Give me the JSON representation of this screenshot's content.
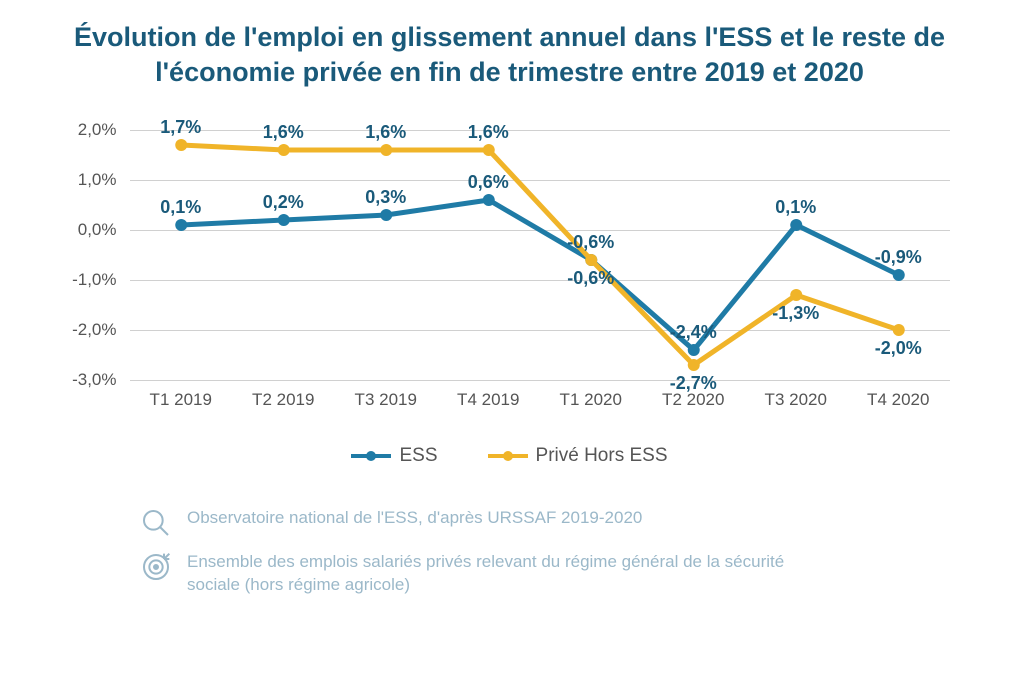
{
  "title": "Évolution de l'emploi en glissement annuel dans l'ESS et le reste de l'économie privée en fin de trimestre entre 2019 et 2020",
  "chart": {
    "type": "line",
    "title_color": "#1a5a7a",
    "title_fontsize": 27,
    "background_color": "#ffffff",
    "grid_color": "#d0d0d0",
    "axis_text_color": "#555555",
    "axis_fontsize": 17,
    "data_label_color": "#1a5a7a",
    "data_label_fontsize": 18,
    "categories": [
      "T1 2019",
      "T2 2019",
      "T3 2019",
      "T4 2019",
      "T1 2020",
      "T2 2020",
      "T3 2020",
      "T4 2020"
    ],
    "ylim": [
      -3.0,
      2.0
    ],
    "yticks": [
      -3.0,
      -2.0,
      -1.0,
      0.0,
      1.0,
      2.0
    ],
    "ytick_labels": [
      "-3,0%",
      "-2,0%",
      "-1,0%",
      "0,0%",
      "1,0%",
      "2,0%"
    ],
    "line_width": 5,
    "marker_radius": 6,
    "series": [
      {
        "name": "ESS",
        "color": "#1f7ba6",
        "values": [
          0.1,
          0.2,
          0.3,
          0.6,
          -0.6,
          -2.4,
          0.1,
          -0.9
        ],
        "labels": [
          "0,1%",
          "0,2%",
          "0,3%",
          "0,6%",
          "-0,6%",
          "-2,4%",
          "0,1%",
          "-0,9%"
        ],
        "label_pos": [
          "above",
          "above",
          "above",
          "above",
          "below",
          "above",
          "above",
          "above"
        ]
      },
      {
        "name": "Privé Hors ESS",
        "color": "#f0b429",
        "values": [
          1.7,
          1.6,
          1.6,
          1.6,
          -0.6,
          -2.7,
          -1.3,
          -2.0
        ],
        "labels": [
          "1,7%",
          "1,6%",
          "1,6%",
          "1,6%",
          "-0,6%",
          "-2,7%",
          "-1,3%",
          "-2,0%"
        ],
        "label_pos": [
          "above",
          "above",
          "above",
          "above",
          "above",
          "below",
          "below",
          "below"
        ]
      }
    ],
    "legend": {
      "items": [
        {
          "label": "ESS",
          "color": "#1f7ba6"
        },
        {
          "label": "Privé Hors ESS",
          "color": "#f0b429"
        }
      ],
      "fontsize": 19
    }
  },
  "footer": {
    "text_color": "#9bb8c9",
    "fontsize": 17,
    "rows": [
      {
        "icon": "magnify",
        "text": "Observatoire national de l'ESS, d'après URSSAF 2019-2020"
      },
      {
        "icon": "target",
        "text": "Ensemble des emplois salariés privés relevant du régime général de la sécurité sociale (hors régime agricole)"
      }
    ]
  }
}
